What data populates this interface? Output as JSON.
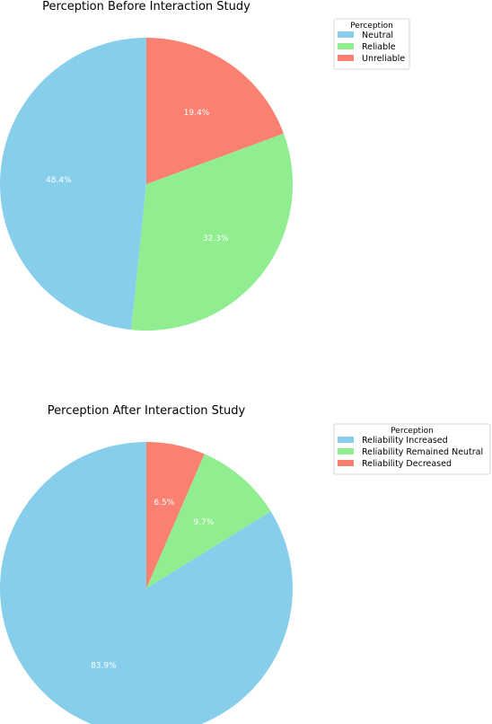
{
  "chart_data": [
    {
      "type": "pie",
      "title": "Perception Before Interaction Study",
      "legend_title": "Perception",
      "legend_position": "upper-right",
      "categories": [
        "Neutral",
        "Reliable",
        "Unreliable"
      ],
      "values": [
        48.4,
        32.3,
        19.4
      ],
      "labels": [
        "48.4%",
        "32.3%",
        "19.4%"
      ],
      "colors": [
        "#87CEEB",
        "#90EE90",
        "#FA8072"
      ]
    },
    {
      "type": "pie",
      "title": "Perception After Interaction Study",
      "legend_title": "Perception",
      "legend_position": "upper-right",
      "categories": [
        "Reliability Increased",
        "Reliability Remained Neutral",
        "Reliability Decreased"
      ],
      "values": [
        83.9,
        9.7,
        6.5
      ],
      "labels": [
        "83.9%",
        "9.7%",
        "6.5%"
      ],
      "colors": [
        "#87CEEB",
        "#90EE90",
        "#FA8072"
      ]
    }
  ]
}
